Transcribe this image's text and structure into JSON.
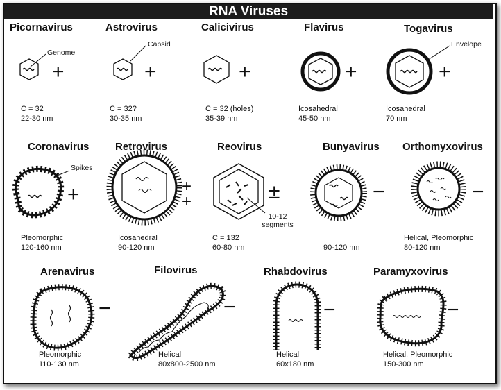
{
  "title": "RNA Viruses",
  "viruses": [
    {
      "name": "Picornavirus",
      "sense": "+",
      "desc1": "C = 32",
      "desc2": "22-30 nm",
      "callout": "Genome"
    },
    {
      "name": "Astrovirus",
      "sense": "+",
      "desc1": "C = 32?",
      "desc2": "30-35 nm",
      "callout": "Capsid"
    },
    {
      "name": "Calicivirus",
      "sense": "+",
      "desc1": "C = 32 (holes)",
      "desc2": "35-39 nm"
    },
    {
      "name": "Flavirus",
      "sense": "+",
      "desc1": "Icosahedral",
      "desc2": "45-50 nm"
    },
    {
      "name": "Togavirus",
      "sense": "+",
      "desc1": "Icosahedral",
      "desc2": "70 nm",
      "callout": "Envelope"
    },
    {
      "name": "Coronavirus",
      "sense": "+",
      "desc1": "Pleomorphic",
      "desc2": "120-160 nm",
      "callout": "Spikes"
    },
    {
      "name": "Retrovirus",
      "sense": "+ +",
      "desc1": "Icosahedral",
      "desc2": "90-120 nm"
    },
    {
      "name": "Reovirus",
      "sense": "±",
      "desc1": "C = 132",
      "desc2": "60-80 nm",
      "callout": "10-12 segments"
    },
    {
      "name": "Bunyavirus",
      "sense": "−",
      "desc1": "",
      "desc2": "90-120 nm"
    },
    {
      "name": "Orthomyxovirus",
      "sense": "−",
      "desc1": "Helical, Pleomorphic",
      "desc2": "80-120 nm"
    },
    {
      "name": "Arenavirus",
      "sense": "−",
      "desc1": "Pleomorphic",
      "desc2": "110-130 nm"
    },
    {
      "name": "Filovirus",
      "sense": "−",
      "desc1": "Helical",
      "desc2": "80x800-2500 nm"
    },
    {
      "name": "Rhabdovirus",
      "sense": "−",
      "desc1": "Helical",
      "desc2": "60x180 nm"
    },
    {
      "name": "Paramyxovirus",
      "sense": "−",
      "desc1": "Helical, Pleomorphic",
      "desc2": "150-300 nm"
    }
  ]
}
